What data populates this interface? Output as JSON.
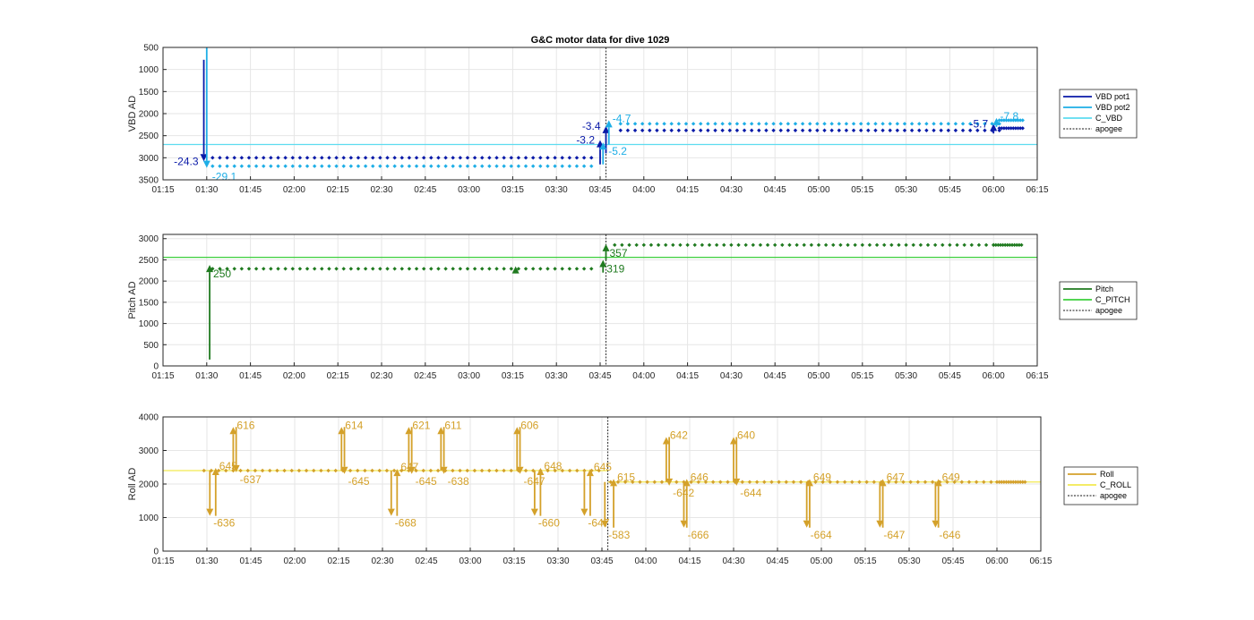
{
  "title": "G&C motor data for dive 1029",
  "colors": {
    "vbd_pot1": "#0a1aa8",
    "vbd_pot2": "#1eaee6",
    "c_vbd": "#5ddcf0",
    "pitch": "#1f7a1f",
    "c_pitch": "#3ccf3c",
    "roll": "#d4a12a",
    "c_roll": "#f2ea50",
    "apogee": "#444444",
    "grid": "#e6e6e6"
  },
  "chart_data": [
    {
      "type": "scatter",
      "name": "vbd",
      "ylabel": "VBD AD",
      "y_reversed": true,
      "xlim": [
        "01:15",
        "06:15"
      ],
      "ylim": [
        500,
        3500
      ],
      "yticks": [
        "500",
        "1000",
        "1500",
        "2000",
        "2500",
        "3000",
        "3500"
      ],
      "xticks": [
        "01:15",
        "01:30",
        "01:45",
        "02:00",
        "02:15",
        "02:30",
        "02:45",
        "03:00",
        "03:15",
        "03:30",
        "03:45",
        "04:00",
        "04:15",
        "04:30",
        "04:45",
        "05:00",
        "05:15",
        "05:30",
        "05:45",
        "06:00",
        "06:15"
      ],
      "grid": true,
      "legend_position": "right",
      "legend": [
        "VBD pot1",
        "VBD pot2",
        "C_VBD",
        "apogee"
      ],
      "reference_line": {
        "series": "C_VBD",
        "y": 2700
      },
      "apogee": "03:47",
      "series": [
        {
          "name": "VBD pot1",
          "segments": [
            {
              "from": "01:32",
              "to": "03:43",
              "step_min": 2.5,
              "y": 3000
            },
            {
              "from": "03:52",
              "to": "06:02",
              "step_min": 2.5,
              "y": 2380
            },
            {
              "from": "06:02",
              "to": "06:10",
              "step_min": 0.8,
              "y": 2330
            }
          ]
        },
        {
          "name": "VBD pot2",
          "segments": [
            {
              "from": "01:32",
              "to": "03:43",
              "step_min": 2.5,
              "y": 3190
            },
            {
              "from": "03:52",
              "to": "06:02",
              "step_min": 2.5,
              "y": 2230
            },
            {
              "from": "06:02",
              "to": "06:10",
              "step_min": 0.8,
              "y": 2150
            }
          ]
        }
      ],
      "arrows": [
        {
          "series": "VBD pot1",
          "x": "01:29",
          "from": 780,
          "to": 3080,
          "label": "-24.3",
          "label_side": "left"
        },
        {
          "series": "VBD pot2",
          "x": "01:30",
          "from": 380,
          "to": 3230,
          "label": "-29.1",
          "label_side": "below"
        },
        {
          "series": "VBD pot1",
          "x": "03:45",
          "from": 3150,
          "to": 2600,
          "label": "-3.2",
          "label_side": "left"
        },
        {
          "series": "VBD pot1",
          "x": "03:47",
          "from": 2900,
          "to": 2280,
          "label": "-3.4",
          "label_side": "left"
        },
        {
          "series": "VBD pot2",
          "x": "03:46",
          "from": 3150,
          "to": 2650,
          "label": "-5.2",
          "label_side": "below"
        },
        {
          "series": "VBD pot2",
          "x": "03:48",
          "from": 2700,
          "to": 2150,
          "label": "-4.7",
          "label_side": "right"
        },
        {
          "series": "VBD pot1",
          "x": "06:00",
          "from": 2450,
          "to": 2230,
          "label": "-5.7",
          "label_side": "left"
        },
        {
          "series": "VBD pot2",
          "x": "06:01",
          "from": 2300,
          "to": 2100,
          "label": "-7.8",
          "label_side": "right"
        }
      ]
    },
    {
      "type": "scatter",
      "name": "pitch",
      "ylabel": "Pitch AD",
      "xlim": [
        "01:15",
        "06:15"
      ],
      "ylim": [
        0,
        3100
      ],
      "yticks": [
        "0",
        "500",
        "1000",
        "1500",
        "2000",
        "2500",
        "3000"
      ],
      "xticks": [
        "01:15",
        "01:30",
        "01:45",
        "02:00",
        "02:15",
        "02:30",
        "02:45",
        "03:00",
        "03:15",
        "03:30",
        "03:45",
        "04:00",
        "04:15",
        "04:30",
        "04:45",
        "05:00",
        "05:15",
        "05:30",
        "05:45",
        "06:00",
        "06:15"
      ],
      "grid": true,
      "legend_position": "right",
      "legend": [
        "Pitch",
        "C_PITCH",
        "apogee"
      ],
      "reference_line": {
        "series": "C_PITCH",
        "y": 2560
      },
      "apogee": "03:47",
      "series": [
        {
          "name": "Pitch",
          "segments": [
            {
              "from": "01:32",
              "to": "03:42",
              "step_min": 2.5,
              "y": 2290
            },
            {
              "from": "03:50",
              "to": "06:00",
              "step_min": 2.5,
              "y": 2850
            },
            {
              "from": "06:00",
              "to": "06:10",
              "step_min": 0.8,
              "y": 2850
            }
          ]
        }
      ],
      "arrows": [
        {
          "series": "Pitch",
          "x": "01:31",
          "from": 150,
          "to": 2380,
          "label": "250",
          "label_side": "below-right"
        },
        {
          "series": "Pitch",
          "x": "03:46",
          "from": 2200,
          "to": 2500,
          "label": "319",
          "label_side": "below-right"
        },
        {
          "series": "Pitch",
          "x": "03:47",
          "from": 2500,
          "to": 2870,
          "label": "357",
          "label_side": "below-right"
        },
        {
          "series": "Pitch",
          "x": "03:16",
          "from": 2300,
          "to": 2350,
          "label": "",
          "label_side": "none"
        }
      ]
    },
    {
      "type": "scatter",
      "name": "roll",
      "ylabel": "Roll AD",
      "xlim": [
        "01:15",
        "06:15"
      ],
      "ylim": [
        0,
        4000
      ],
      "yticks": [
        "0",
        "1000",
        "2000",
        "3000",
        "4000"
      ],
      "xticks": [
        "01:15",
        "01:30",
        "01:45",
        "02:00",
        "02:15",
        "02:30",
        "02:45",
        "03:00",
        "03:15",
        "03:30",
        "03:45",
        "04:00",
        "04:15",
        "04:30",
        "04:45",
        "05:00",
        "05:15",
        "05:30",
        "05:45",
        "06:00",
        "06:15"
      ],
      "grid": true,
      "legend_position": "right",
      "legend": [
        "Roll",
        "C_ROLL",
        "apogee"
      ],
      "reference_lines": [
        {
          "series": "C_ROLL",
          "from": "01:15",
          "to": "03:47",
          "y": 2400
        },
        {
          "series": "C_ROLL",
          "from": "03:47",
          "to": "06:15",
          "y": 2060
        }
      ],
      "apogee": "03:47",
      "series": [
        {
          "name": "Roll",
          "segments": [
            {
              "from": "01:29",
              "to": "03:45",
              "step_min": 2.5,
              "y": 2400
            },
            {
              "from": "03:48",
              "to": "06:00",
              "step_min": 2.5,
              "y": 2060
            },
            {
              "from": "06:00",
              "to": "06:10",
              "step_min": 0.8,
              "y": 2060
            }
          ]
        }
      ],
      "arrows": [
        {
          "series": "Roll",
          "x": "01:31",
          "from": 2400,
          "to": 1050,
          "label": "-636",
          "label_side": "below-right"
        },
        {
          "series": "Roll",
          "x": "01:33",
          "from": 1050,
          "to": 2480,
          "label": "645",
          "label_side": "right"
        },
        {
          "series": "Roll",
          "x": "01:39",
          "from": 2400,
          "to": 3700,
          "label": "616",
          "label_side": "right"
        },
        {
          "series": "Roll",
          "x": "01:40",
          "from": 3700,
          "to": 2350,
          "label": "-637",
          "label_side": "below-right"
        },
        {
          "series": "Roll",
          "x": "02:16",
          "from": 2400,
          "to": 3700,
          "label": "614",
          "label_side": "right"
        },
        {
          "series": "Roll",
          "x": "02:17",
          "from": 3700,
          "to": 2300,
          "label": "-645",
          "label_side": "below-right"
        },
        {
          "series": "Roll",
          "x": "02:33",
          "from": 2400,
          "to": 1050,
          "label": "-668",
          "label_side": "below-right"
        },
        {
          "series": "Roll",
          "x": "02:35",
          "from": 1050,
          "to": 2450,
          "label": "647",
          "label_side": "right"
        },
        {
          "series": "Roll",
          "x": "02:39",
          "from": 2400,
          "to": 3700,
          "label": "621",
          "label_side": "right"
        },
        {
          "series": "Roll",
          "x": "02:40",
          "from": 3700,
          "to": 2300,
          "label": "-645",
          "label_side": "below-right"
        },
        {
          "series": "Roll",
          "x": "02:50",
          "from": 2400,
          "to": 3700,
          "label": "611",
          "label_side": "right"
        },
        {
          "series": "Roll",
          "x": "02:51",
          "from": 3700,
          "to": 2300,
          "label": "-638",
          "label_side": "below-right"
        },
        {
          "series": "Roll",
          "x": "03:16",
          "from": 2400,
          "to": 3700,
          "label": "606",
          "label_side": "right"
        },
        {
          "series": "Roll",
          "x": "03:17",
          "from": 3700,
          "to": 2300,
          "label": "-647",
          "label_side": "below-right"
        },
        {
          "series": "Roll",
          "x": "03:22",
          "from": 2400,
          "to": 1050,
          "label": "-660",
          "label_side": "below-right"
        },
        {
          "series": "Roll",
          "x": "03:24",
          "from": 1050,
          "to": 2480,
          "label": "648",
          "label_side": "right"
        },
        {
          "series": "Roll",
          "x": "03:39",
          "from": 2400,
          "to": 1050,
          "label": "-647",
          "label_side": "below-right"
        },
        {
          "series": "Roll",
          "x": "03:41",
          "from": 1050,
          "to": 2450,
          "label": "645",
          "label_side": "right"
        },
        {
          "series": "Roll",
          "x": "03:46",
          "from": 2060,
          "to": 700,
          "label": "-583",
          "label_side": "below-right"
        },
        {
          "series": "Roll",
          "x": "03:49",
          "from": 700,
          "to": 2150,
          "label": "615",
          "label_side": "right"
        },
        {
          "series": "Roll",
          "x": "04:07",
          "from": 2060,
          "to": 3400,
          "label": "642",
          "label_side": "right"
        },
        {
          "series": "Roll",
          "x": "04:08",
          "from": 3400,
          "to": 1950,
          "label": "-642",
          "label_side": "below-right"
        },
        {
          "series": "Roll",
          "x": "04:13",
          "from": 2060,
          "to": 700,
          "label": "-666",
          "label_side": "below-right"
        },
        {
          "series": "Roll",
          "x": "04:14",
          "from": 700,
          "to": 2150,
          "label": "646",
          "label_side": "right"
        },
        {
          "series": "Roll",
          "x": "04:30",
          "from": 2060,
          "to": 3400,
          "label": "640",
          "label_side": "right"
        },
        {
          "series": "Roll",
          "x": "04:31",
          "from": 3400,
          "to": 1950,
          "label": "-644",
          "label_side": "below-right"
        },
        {
          "series": "Roll",
          "x": "04:55",
          "from": 2060,
          "to": 700,
          "label": "-664",
          "label_side": "below-right"
        },
        {
          "series": "Roll",
          "x": "04:56",
          "from": 700,
          "to": 2150,
          "label": "649",
          "label_side": "right"
        },
        {
          "series": "Roll",
          "x": "05:20",
          "from": 2060,
          "to": 700,
          "label": "-647",
          "label_side": "below-right"
        },
        {
          "series": "Roll",
          "x": "05:21",
          "from": 700,
          "to": 2150,
          "label": "647",
          "label_side": "right"
        },
        {
          "series": "Roll",
          "x": "05:39",
          "from": 2060,
          "to": 700,
          "label": "-646",
          "label_side": "below-right"
        },
        {
          "series": "Roll",
          "x": "05:40",
          "from": 700,
          "to": 2150,
          "label": "649",
          "label_side": "right"
        }
      ]
    }
  ]
}
